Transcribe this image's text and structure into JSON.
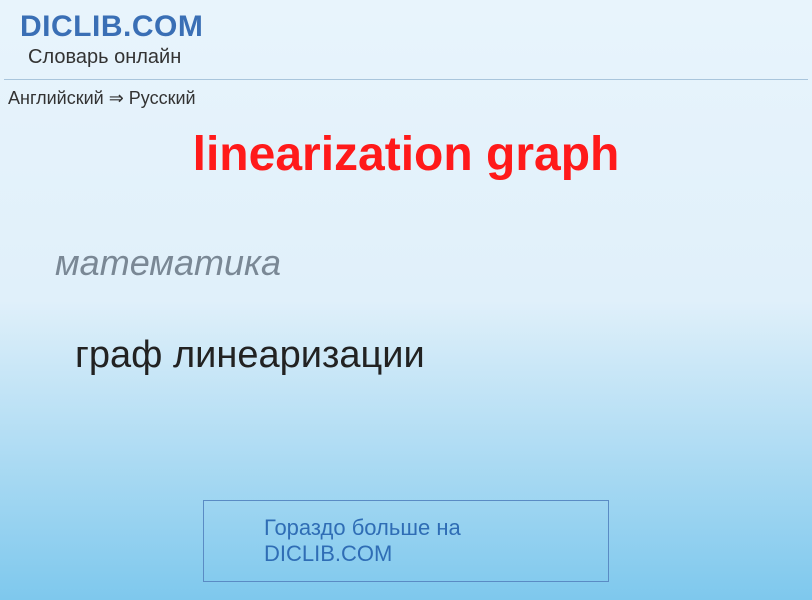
{
  "header": {
    "site_title": "DICLIB.COM",
    "site_subtitle": "Словарь онлайн"
  },
  "breadcrumb": {
    "text": "Английский ⇒ Русский"
  },
  "entry": {
    "term": "linearization graph",
    "category": "математика",
    "translation": "граф линеаризации"
  },
  "footer": {
    "more_link_text": "Гораздо больше на DICLIB.COM"
  },
  "colors": {
    "title_color": "#3a6fb5",
    "term_color": "#ff1a1a",
    "category_color": "#7a8895",
    "link_color": "#2f6db5",
    "gradient_top": "#e8f4fc",
    "gradient_bottom": "#7ec8ed"
  }
}
